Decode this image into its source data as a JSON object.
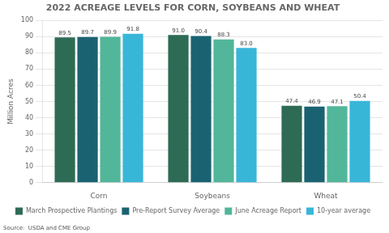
{
  "chart_data": {
    "type": "bar",
    "title": "2022 ACREAGE LEVELS FOR CORN, SOYBEANS AND WHEAT",
    "ylabel": "Million Acres",
    "annotations": [
      "Source:  USDA and CME Group"
    ],
    "categories": [
      "Corn",
      "Soybeans",
      "Wheat"
    ],
    "series": [
      {
        "name": "March Prospective Plantings",
        "color": "#2d6b55",
        "values": [
          89.5,
          91.0,
          47.4
        ],
        "value_labels": [
          "89.5",
          "91.0",
          "47.4"
        ]
      },
      {
        "name": "Pre-Report Survey Average",
        "color": "#1a6272",
        "values": [
          89.7,
          90.4,
          46.9
        ],
        "value_labels": [
          "89.7",
          "90.4",
          "46.9"
        ]
      },
      {
        "name": "June Acreage Report",
        "color": "#52b69a",
        "values": [
          89.9,
          88.3,
          47.1
        ],
        "value_labels": [
          "89.9",
          "88.3",
          "47.1"
        ]
      },
      {
        "name": "10-year average",
        "color": "#38b6d8",
        "values": [
          91.8,
          83.0,
          50.4
        ],
        "value_labels": [
          "91.8",
          "83.0",
          "50.4"
        ]
      }
    ],
    "ylim": [
      0,
      100
    ],
    "yticks": [
      0,
      10,
      20,
      30,
      40,
      50,
      60,
      70,
      80,
      90,
      100
    ],
    "grid": true,
    "legend": "bottom",
    "data_labels": true
  }
}
